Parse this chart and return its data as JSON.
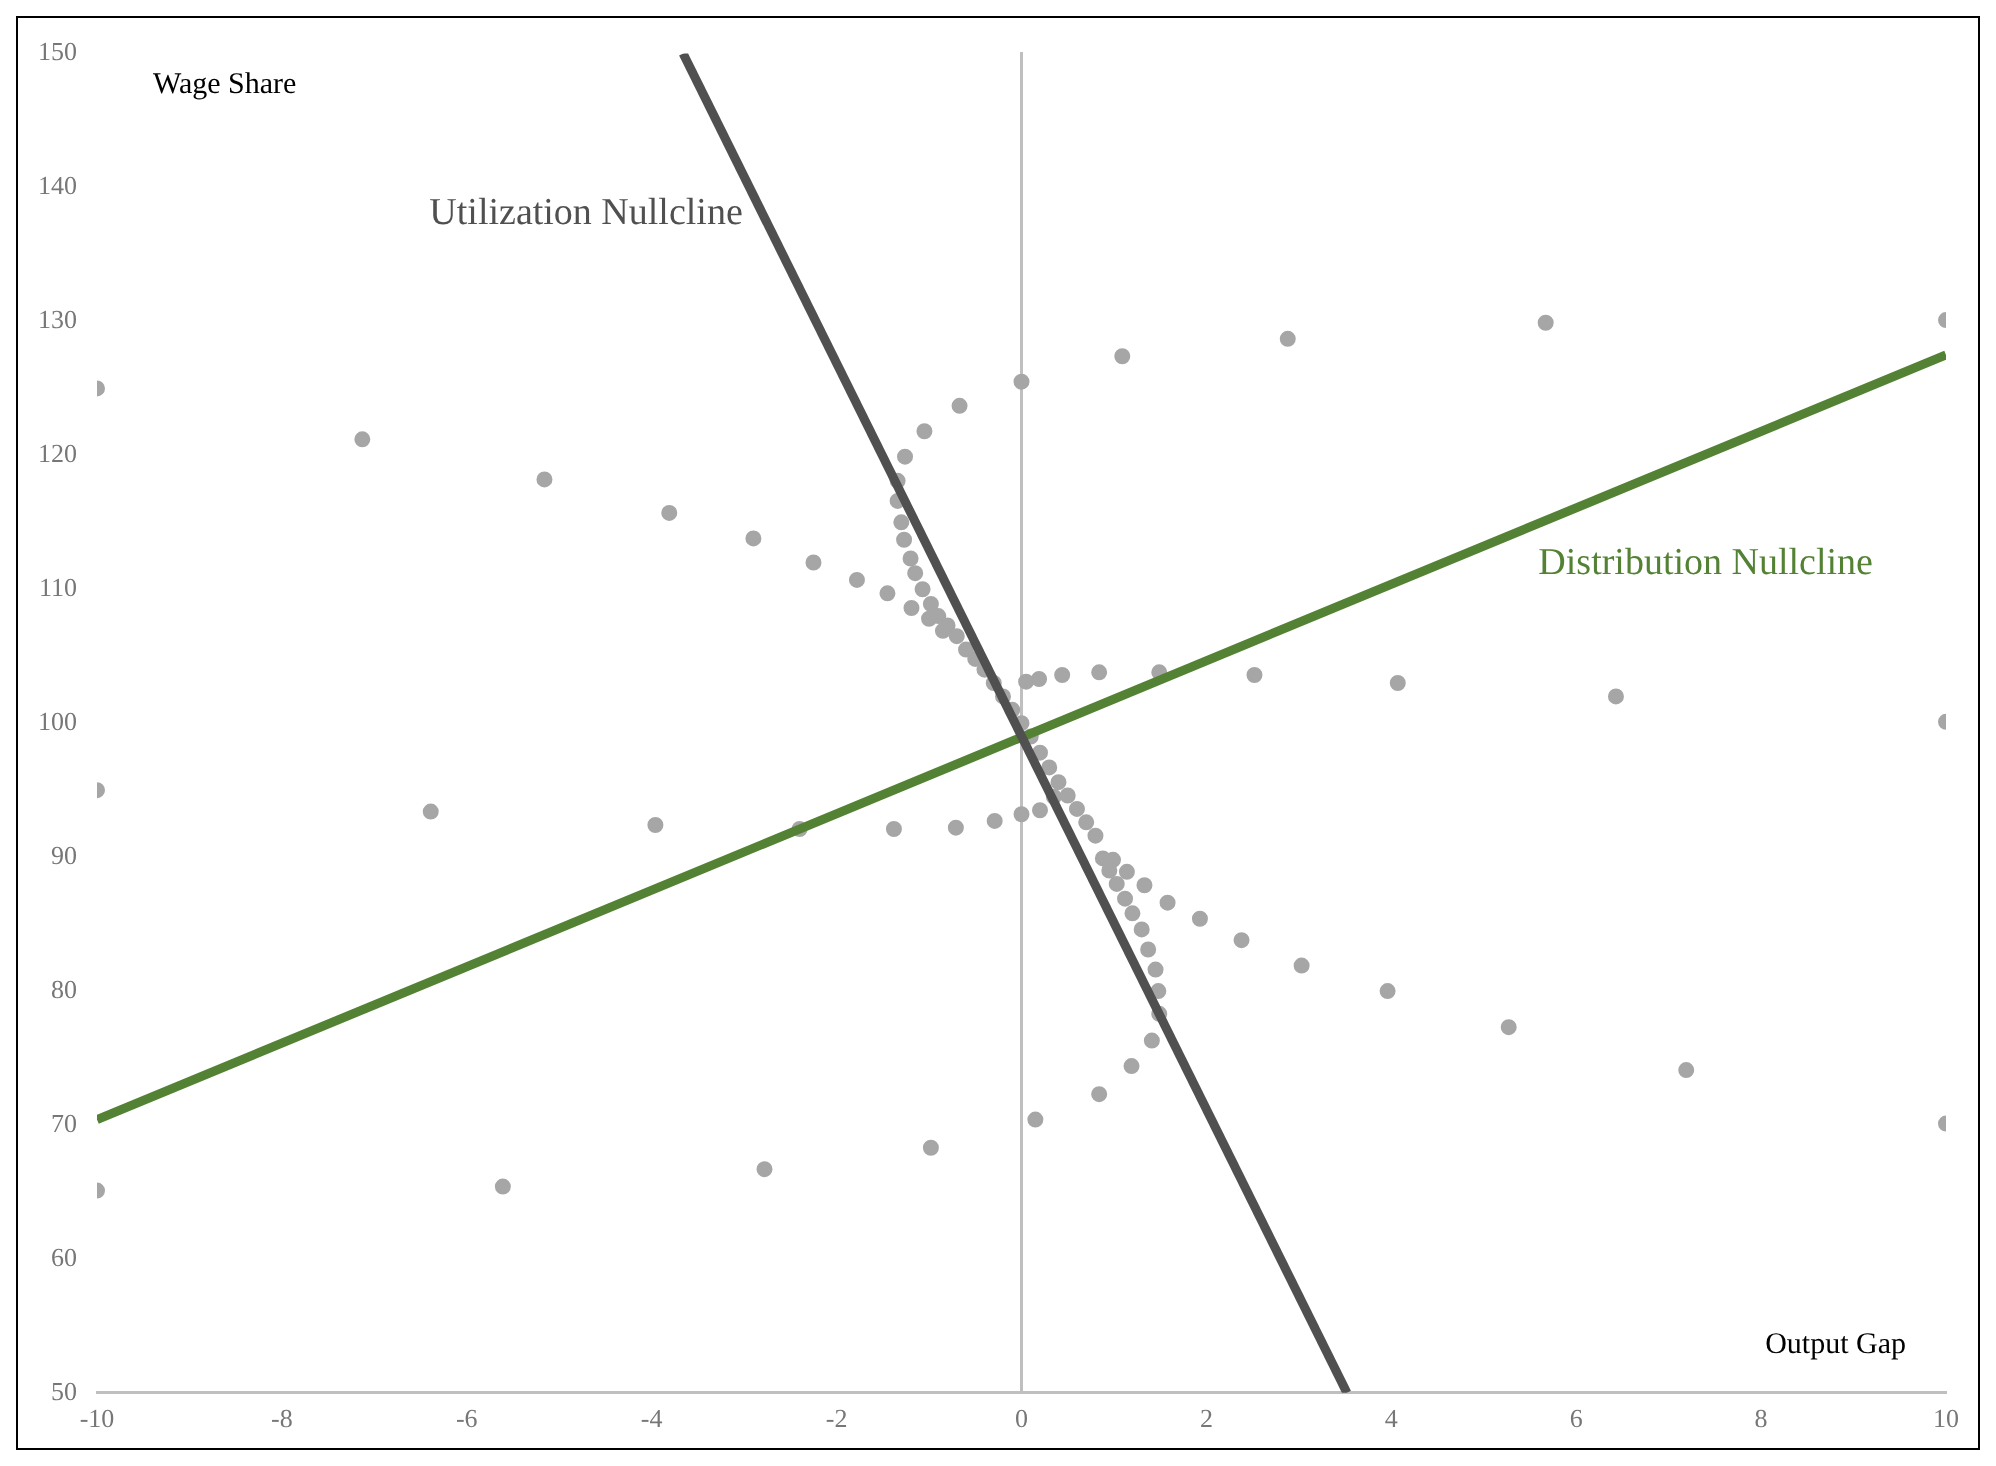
{
  "chart_data": {
    "type": "scatter",
    "xlabel": "Output Gap",
    "ylabel": "Wage Share",
    "xlim": [
      -10,
      10
    ],
    "xticks": [
      -10,
      -8,
      -6,
      -4,
      -2,
      0,
      2,
      4,
      6,
      8,
      10
    ],
    "ylim": [
      50,
      150
    ],
    "yticks": [
      50,
      60,
      70,
      80,
      90,
      100,
      110,
      120,
      130,
      140,
      150
    ],
    "legend": false,
    "marker": "circle",
    "series": [
      {
        "color": "#a6a6a6",
        "x": [
          -10,
          -7.13,
          -5.16,
          -3.81,
          -2.9,
          -2.25,
          -1.78,
          -1.45,
          -1.19,
          -1.0,
          -0.85,
          0,
          -0.67,
          -1.05,
          -1.26,
          -1.34,
          -1.34,
          -1.3,
          -1.27,
          -1.2,
          -1.15,
          -1.07,
          -0.98,
          -0.9,
          -0.8,
          -0.7,
          -0.6,
          -0.5,
          -0.4,
          -0.3,
          -0.2,
          -0.1,
          0,
          0.1,
          0.2,
          0.3,
          0.4,
          0.5,
          0.6,
          0.7,
          0.8,
          1.09,
          2.88,
          5.67,
          10,
          10,
          6.43,
          4.07,
          2.52,
          1.49,
          0.84,
          0.44,
          0.19,
          0.05,
          -10,
          -6.39,
          -3.96,
          -2.4,
          -1.38,
          -0.71,
          -0.29,
          0,
          0.2,
          0.35,
          -10,
          -5.61,
          -2.78,
          -0.98,
          0.15,
          0.84,
          1.19,
          1.41,
          1.49,
          1.48,
          1.45,
          1.37,
          1.3,
          1.2,
          1.12,
          1.03,
          0.95,
          0.88,
          10,
          7.19,
          5.27,
          3.96,
          3.03,
          2.38,
          1.93,
          1.58,
          1.33,
          1.14,
          0.99
        ],
        "values": [
          125,
          121.2,
          118.2,
          115.7,
          113.8,
          112,
          110.7,
          109.7,
          108.6,
          107.8,
          106.9,
          125.5,
          123.7,
          121.8,
          119.9,
          118.1,
          116.6,
          115,
          113.7,
          112.3,
          111.2,
          110,
          108.9,
          108,
          107.3,
          106.5,
          105.5,
          104.8,
          104,
          103,
          102,
          101,
          100,
          99,
          97.8,
          96.7,
          95.6,
          94.6,
          93.6,
          92.6,
          91.6,
          127.4,
          128.7,
          129.9,
          130.1,
          100.1,
          102,
          103,
          103.6,
          103.8,
          103.8,
          103.6,
          103.3,
          103.1,
          95,
          93.4,
          92.4,
          92.1,
          92.1,
          92.2,
          92.7,
          93.2,
          93.5,
          94.5,
          65.1,
          65.4,
          66.7,
          68.3,
          70.4,
          72.3,
          74.4,
          76.3,
          78.3,
          80,
          81.6,
          83.1,
          84.6,
          85.8,
          86.9,
          88,
          89,
          89.9,
          70.1,
          74.1,
          77.3,
          80,
          81.9,
          83.8,
          85.4,
          86.6,
          87.9,
          88.9,
          89.8
        ]
      },
      {
        "type": "line",
        "name": "Utilization Nullcline",
        "color": "#505050",
        "marker": "none",
        "x": [
          -3.66,
          3.52
        ],
        "values": [
          150,
          50
        ]
      },
      {
        "type": "line",
        "name": "Distribution Nullcline",
        "color": "#548235",
        "marker": "none",
        "x": [
          -10,
          10
        ],
        "values": [
          70.4,
          127.5
        ]
      }
    ]
  }
}
